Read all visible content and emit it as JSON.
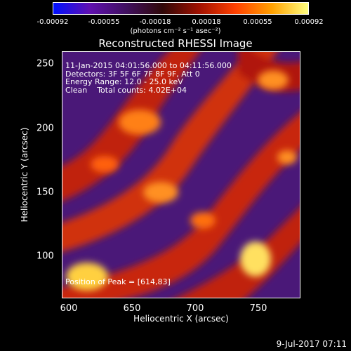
{
  "colorbar": {
    "ticks": [
      "-0.00092",
      "-0.00055",
      "-0.00018",
      "0.00018",
      "0.00055",
      "0.00092"
    ],
    "units": "(photons cm⁻² s⁻¹ asec⁻²)",
    "gradient_colors": [
      "#0010ff",
      "#6010b0",
      "#401060",
      "#300808",
      "#a01000",
      "#ff4000",
      "#ffa000",
      "#ffff80"
    ]
  },
  "title": "Reconstructed RHESSI Image",
  "info": {
    "time": "11-Jan-2015 04:01:56.000 to 04:11:56.000",
    "detectors": "Detectors: 3F 5F 6F 7F 8F 9F, Att 0",
    "energy": "Energy Range: 12.0 - 25.0 keV",
    "clean": "Clean    Total counts: 4.02E+04",
    "peak": "Position of Peak = [614,83]"
  },
  "axes": {
    "xlabel": "Heliocentric X (arcsec)",
    "ylabel": "Heliocentric Y (arcsec)",
    "xticks": [
      "600",
      "650",
      "700",
      "750"
    ],
    "yticks": [
      "250",
      "200",
      "150",
      "100"
    ],
    "xlim": [
      588,
      777
    ],
    "ylim": [
      66,
      262
    ]
  },
  "timestamp": "9-Jul-2017 07:11"
}
